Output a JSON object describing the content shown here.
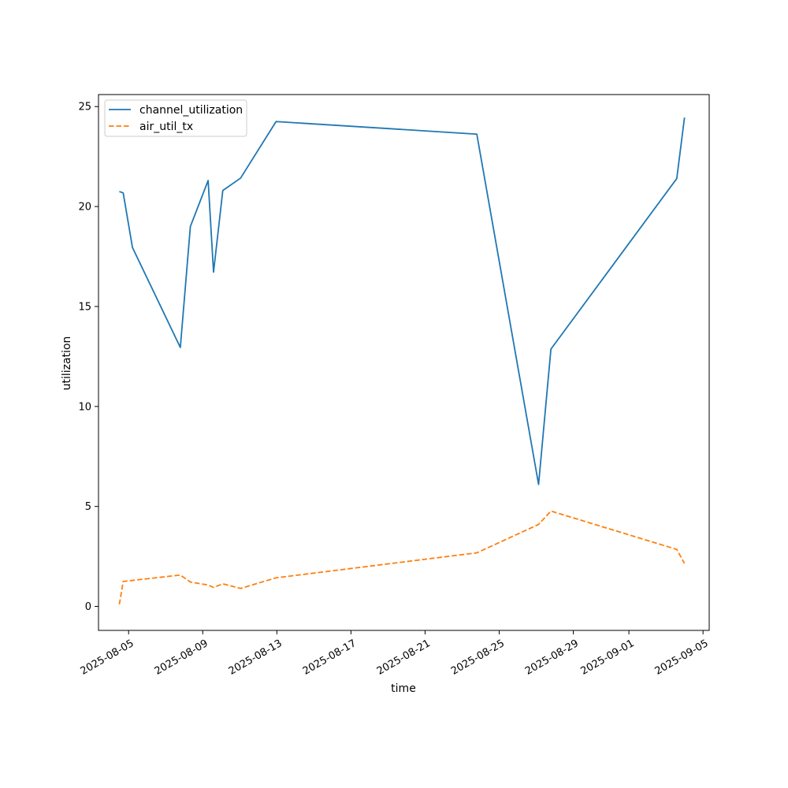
{
  "chart_data": {
    "type": "line",
    "title": "",
    "xlabel": "time",
    "ylabel": "utilization",
    "xlim": [
      "2025-08-03T09:00",
      "2025-09-05T08:00"
    ],
    "ylim": [
      -1.2,
      25.6
    ],
    "x_ticks": [
      "2025-08-05",
      "2025-08-09",
      "2025-08-13",
      "2025-08-17",
      "2025-08-21",
      "2025-08-25",
      "2025-08-29",
      "2025-09-01",
      "2025-09-05"
    ],
    "y_ticks": [
      "0",
      "5",
      "10",
      "15",
      "20",
      "25"
    ],
    "legend_position": "upper-left",
    "grid": false,
    "series": [
      {
        "name": "channel_utilization",
        "color": "#1f77b4",
        "dash": "solid",
        "points": [
          {
            "x": "2025-08-04T12:00",
            "y": 20.75
          },
          {
            "x": "2025-08-04T17:00",
            "y": 20.68
          },
          {
            "x": "2025-08-05T05:00",
            "y": 17.95
          },
          {
            "x": "2025-08-07T19:00",
            "y": 12.95
          },
          {
            "x": "2025-08-08T08:00",
            "y": 19.0
          },
          {
            "x": "2025-08-09T07:00",
            "y": 21.3
          },
          {
            "x": "2025-08-09T14:00",
            "y": 16.72
          },
          {
            "x": "2025-08-10T02:00",
            "y": 20.8
          },
          {
            "x": "2025-08-11T01:00",
            "y": 21.42
          },
          {
            "x": "2025-08-12T23:00",
            "y": 24.25
          },
          {
            "x": "2025-08-23T19:00",
            "y": 23.62
          },
          {
            "x": "2025-08-27T03:00",
            "y": 6.1
          },
          {
            "x": "2025-08-27T19:00",
            "y": 12.87
          },
          {
            "x": "2025-09-03T14:00",
            "y": 21.4
          },
          {
            "x": "2025-09-04T00:00",
            "y": 24.45
          }
        ]
      },
      {
        "name": "air_util_tx",
        "color": "#ff7f0e",
        "dash": "dashed",
        "points": [
          {
            "x": "2025-08-04T12:00",
            "y": 0.1
          },
          {
            "x": "2025-08-04T17:00",
            "y": 1.25
          },
          {
            "x": "2025-08-05T05:00",
            "y": 1.3
          },
          {
            "x": "2025-08-07T19:00",
            "y": 1.57
          },
          {
            "x": "2025-08-08T08:00",
            "y": 1.22
          },
          {
            "x": "2025-08-09T07:00",
            "y": 1.07
          },
          {
            "x": "2025-08-09T14:00",
            "y": 0.95
          },
          {
            "x": "2025-08-10T02:00",
            "y": 1.13
          },
          {
            "x": "2025-08-11T01:00",
            "y": 0.9
          },
          {
            "x": "2025-08-12T23:00",
            "y": 1.43
          },
          {
            "x": "2025-08-23T19:00",
            "y": 2.68
          },
          {
            "x": "2025-08-27T03:00",
            "y": 4.1
          },
          {
            "x": "2025-08-27T19:00",
            "y": 4.77
          },
          {
            "x": "2025-09-03T14:00",
            "y": 2.85
          },
          {
            "x": "2025-09-04T00:00",
            "y": 2.15
          }
        ]
      }
    ]
  }
}
